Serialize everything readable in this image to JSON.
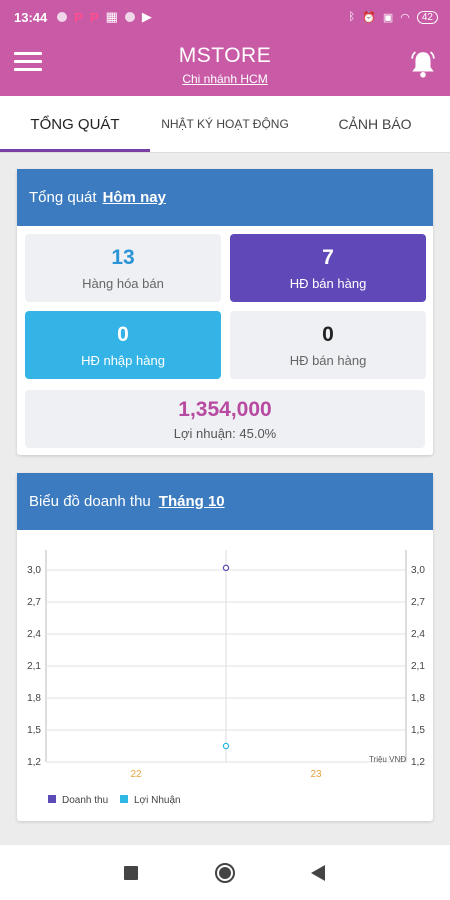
{
  "status_bar": {
    "time": "13:44",
    "battery": "42",
    "icons": [
      "notification-dot-icon",
      "pinterest-icon",
      "pinterest-icon",
      "qr-icon",
      "notification-dot-icon",
      "play-icon",
      "bluetooth-icon",
      "alarm-icon",
      "sim-icon",
      "wifi-icon",
      "battery-icon"
    ]
  },
  "app_bar": {
    "title": "MSTORE",
    "subtitle": "Chi nhánh HCM"
  },
  "tabs": [
    {
      "label": "TỔNG QUÁT",
      "active": true
    },
    {
      "label": "NHẬT KÝ HOẠT ĐỘNG",
      "active": false
    },
    {
      "label": "CẢNH BÁO",
      "active": false
    }
  ],
  "overview": {
    "header_label": "Tổng quát",
    "header_link": "Hôm nay",
    "tiles": [
      {
        "value": "13",
        "label": "Hàng hóa bán"
      },
      {
        "value": "7",
        "label": "HĐ bán hàng"
      },
      {
        "value": "0",
        "label": "HĐ nhập hàng"
      },
      {
        "value": "0",
        "label": "HĐ bán hàng"
      }
    ],
    "profit_value": "1,354,000",
    "profit_label": "Lợi nhuận: 45.0%"
  },
  "revenue": {
    "header_label": "Biểu đồ doanh thu",
    "header_link": "Tháng 10"
  },
  "chart_data": {
    "type": "scatter",
    "x_categories": [
      "22",
      "23"
    ],
    "y_ticks": [
      "3,0",
      "2,7",
      "2,4",
      "2,1",
      "1,8",
      "1,5",
      "1,2"
    ],
    "y_range": [
      1.2,
      3.0
    ],
    "unit_label": "Triệu VNĐ",
    "series": [
      {
        "name": "Doanh thu",
        "color": "#5b4bb7",
        "points": [
          {
            "x": 22.5,
            "y": 3.02
          }
        ]
      },
      {
        "name": "Lợi Nhuận",
        "color": "#2fb7e3",
        "points": [
          {
            "x": 22.5,
            "y": 1.35
          }
        ]
      }
    ]
  },
  "colors": {
    "primary": "#c85aa6",
    "header_blue": "#3c7bbf",
    "purple_tile": "#6148b8",
    "cyan_tile": "#34b4e6",
    "profit_pink": "#b84aa2",
    "x_tick": "#e8a23c"
  }
}
